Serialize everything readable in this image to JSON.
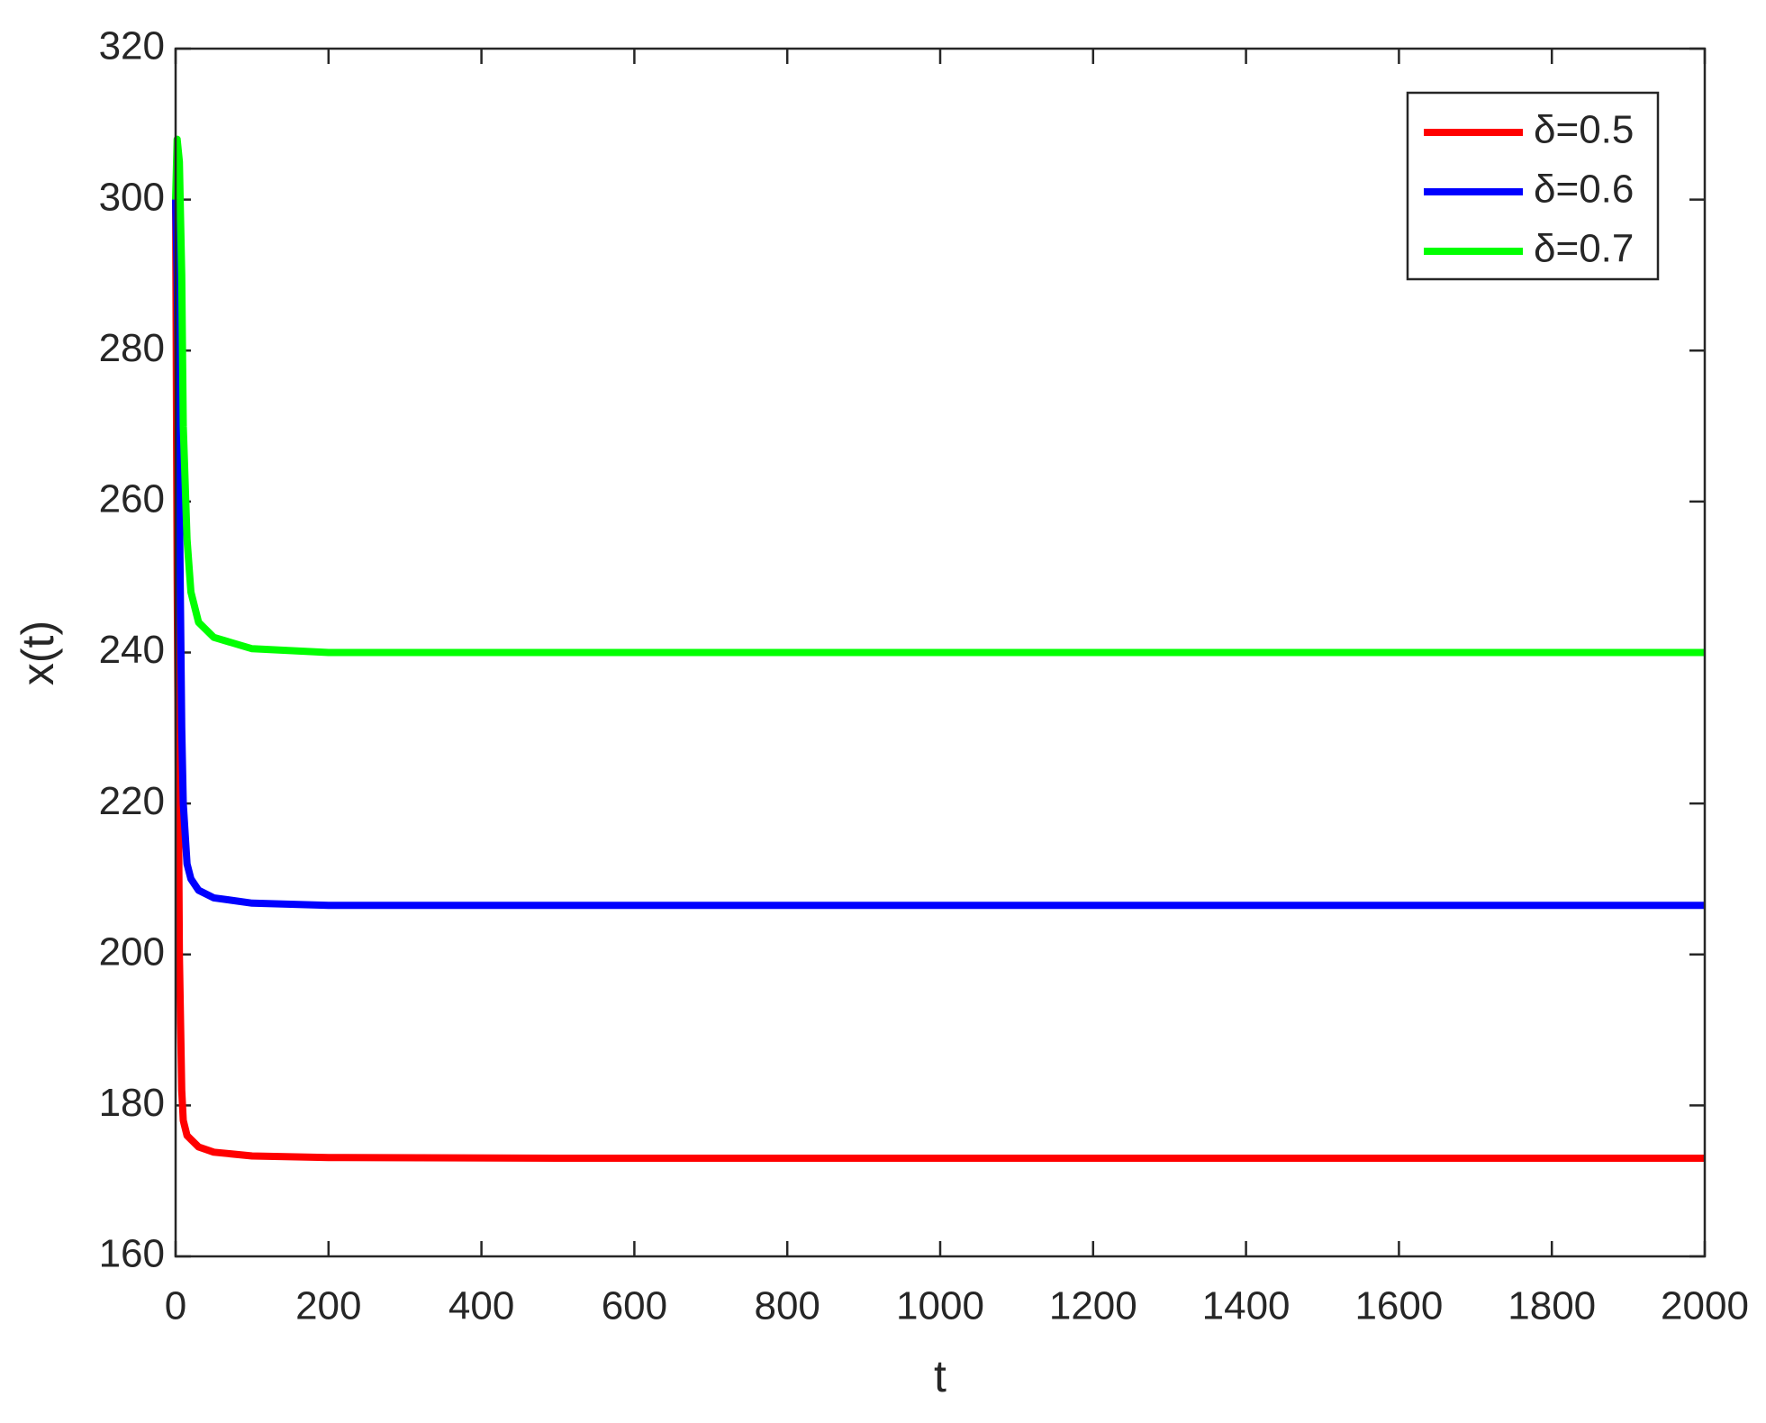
{
  "chart_data": {
    "type": "line",
    "x_label": "t",
    "y_label": "x(t)",
    "x": [
      0,
      2,
      5,
      8,
      10,
      15,
      20,
      30,
      50,
      100,
      200,
      500,
      1000,
      2000
    ],
    "series": [
      {
        "name": "δ=0.5",
        "color": "#ff0000",
        "values": [
          300,
          250,
          200,
          182,
          178,
          176,
          175.5,
          174.5,
          173.8,
          173.3,
          173.1,
          173,
          173,
          173
        ]
      },
      {
        "name": "δ=0.6",
        "color": "#0000ff",
        "values": [
          300,
          290,
          260,
          230,
          220,
          212,
          210,
          208.5,
          207.5,
          206.8,
          206.5,
          206.5,
          206.5,
          206.5
        ]
      },
      {
        "name": "δ=0.7",
        "color": "#00ff00",
        "values": [
          300,
          308,
          305,
          290,
          270,
          255,
          248,
          244,
          242,
          240.5,
          240,
          240,
          240,
          240
        ]
      }
    ],
    "xlim": [
      0,
      2000
    ],
    "xticks": [
      0,
      200,
      400,
      600,
      800,
      1000,
      1200,
      1400,
      1600,
      1800,
      2000
    ],
    "ylim": [
      160,
      320
    ],
    "yticks": [
      160,
      180,
      200,
      220,
      240,
      260,
      280,
      300,
      320
    ],
    "legend": "upper-right"
  }
}
